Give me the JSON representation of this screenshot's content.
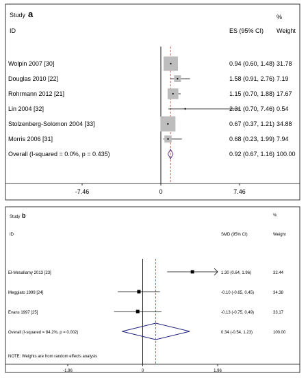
{
  "chart_data": [
    {
      "type": "forest",
      "panel_label": "a",
      "header": {
        "study": "Study",
        "id": "ID",
        "es_label": "ES (95% CI)",
        "pct": "%",
        "weight": "Weight"
      },
      "null_value": 0,
      "xlim": [
        -7.46,
        7.46
      ],
      "ticks": [
        {
          "value": -7.46,
          "label": "-7.46"
        },
        {
          "value": 0,
          "label": "0"
        },
        {
          "value": 7.46,
          "label": "7.46"
        }
      ],
      "studies": [
        {
          "name": "Wolpin 2007  [30]",
          "es": 0.94,
          "lo": 0.6,
          "hi": 1.48,
          "ci_text": "0.94 (0.60, 1.48)",
          "weight": 31.78,
          "weight_text": "31.78"
        },
        {
          "name": "Douglas 2010  [22]",
          "es": 1.58,
          "lo": 0.91,
          "hi": 2.76,
          "ci_text": "1.58 (0.91, 2.76)",
          "weight": 7.19,
          "weight_text": "7.19"
        },
        {
          "name": "Rohrmann 2012  [21]",
          "es": 1.15,
          "lo": 0.7,
          "hi": 1.88,
          "ci_text": "1.15 (0.70, 1.88)",
          "weight": 17.67,
          "weight_text": "17.67"
        },
        {
          "name": "Lin 2004  [32]",
          "es": 2.31,
          "lo": 0.7,
          "hi": 7.46,
          "ci_text": "2.31 (0.70, 7.46)",
          "weight": 0.54,
          "weight_text": "0.54"
        },
        {
          "name": "Stolzenberg-Solomon 2004  [33]",
          "es": 0.67,
          "lo": 0.37,
          "hi": 1.21,
          "ci_text": "0.67 (0.37, 1.21)",
          "weight": 34.88,
          "weight_text": "34.88"
        },
        {
          "name": "Morris 2006  [31]",
          "es": 0.68,
          "lo": 0.23,
          "hi": 1.99,
          "ci_text": "0.68 (0.23, 1.99)",
          "weight": 7.94,
          "weight_text": "7.94"
        }
      ],
      "overall": {
        "label": "Overall  (I-squared = 0.0%, p = 0.435)",
        "es": 0.92,
        "lo": 0.67,
        "hi": 1.16,
        "ci_text": "0.92 (0.67, 1.16)",
        "weight_text": "100.00"
      },
      "note": "",
      "colors": {
        "box": "#bdbdbd",
        "diamond": "#5b3b8c",
        "dashed": "#d9534f",
        "line": "#000000",
        "frame": "#000000"
      }
    },
    {
      "type": "forest",
      "panel_label": "b",
      "header": {
        "study": "Study",
        "id": "ID",
        "es_label": "SMD (95% CI)",
        "pct": "%",
        "weight": "Weight"
      },
      "null_value": 0,
      "xlim": [
        -1.96,
        1.96
      ],
      "ticks": [
        {
          "value": -1.96,
          "label": "-1.96"
        },
        {
          "value": 0,
          "label": "0"
        },
        {
          "value": 1.96,
          "label": "1.96"
        }
      ],
      "studies": [
        {
          "name": "El-Mesallamy 2013  [23]",
          "es": 1.3,
          "lo": 0.64,
          "hi": 1.96,
          "ci_text": "1.30 (0.64, 1.96)",
          "weight": 32.44,
          "weight_text": "32.44",
          "arrow_right": true
        },
        {
          "name": "Meggiato 1999  [24]",
          "es": -0.1,
          "lo": -0.65,
          "hi": 0.45,
          "ci_text": "-0.10 (-0.65, 0.45)",
          "weight": 34.38,
          "weight_text": "34.38"
        },
        {
          "name": "Evans 1997  [25]",
          "es": -0.13,
          "lo": -0.75,
          "hi": 0.49,
          "ci_text": "-0.13 (-0.75, 0.49)",
          "weight": 33.17,
          "weight_text": "33.17"
        }
      ],
      "overall": {
        "label": "Overall  (I-squared = 84.2%, p = 0.002)",
        "es": 0.34,
        "lo": -0.54,
        "hi": 1.23,
        "ci_text": "0.34 (-0.54, 1.23)",
        "weight_text": "100.00"
      },
      "note": "NOTE: Weights are from random effects analysis",
      "colors": {
        "box": "#000000",
        "diamond": "#1f1f7a",
        "dashed": "#d9534f",
        "line": "#000000",
        "frame": "#000000"
      }
    }
  ]
}
